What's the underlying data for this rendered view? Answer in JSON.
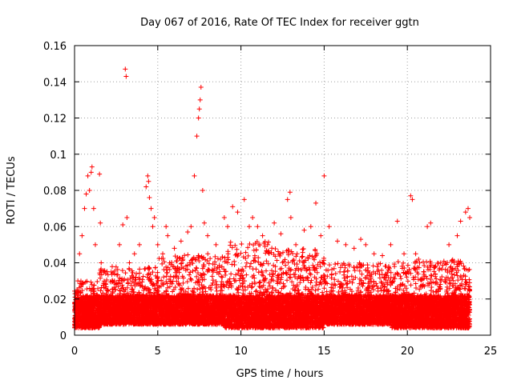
{
  "chart_data": {
    "type": "scatter",
    "title": "Day 067 of 2016, Rate Of TEC Index for receiver ggtn",
    "xlabel": "GPS time / hours",
    "ylabel": "ROTI / TECUs",
    "xlim": [
      0,
      25
    ],
    "ylim": [
      0,
      0.16
    ],
    "xticks": [
      0,
      5,
      10,
      15,
      20,
      25
    ],
    "yticks": [
      0,
      0.02,
      0.04,
      0.06,
      0.08,
      0.1,
      0.12,
      0.14,
      0.16
    ],
    "xtick_labels": [
      "0",
      "5",
      "10",
      "15",
      "20",
      "25"
    ],
    "ytick_labels": [
      "0",
      "0.02",
      "0.04",
      "0.06",
      "0.08",
      "0.1",
      "0.12",
      "0.14",
      "0.16"
    ],
    "grid": true,
    "marker": "+",
    "marker_color": "#ff0000",
    "series": [
      {
        "name": "ROTI",
        "x": [
          0.05,
          0.2,
          0.3,
          0.45,
          0.6,
          0.7,
          0.8,
          0.9,
          1.0,
          1.05,
          1.15,
          1.25,
          1.5,
          1.55,
          1.6,
          2.0,
          2.2,
          2.4,
          2.7,
          2.9,
          3.05,
          3.1,
          3.15,
          3.3,
          3.6,
          3.9,
          4.3,
          4.4,
          4.45,
          4.5,
          4.6,
          4.7,
          4.8,
          5.0,
          5.3,
          5.5,
          5.6,
          6.0,
          6.4,
          6.8,
          7.0,
          7.2,
          7.35,
          7.45,
          7.5,
          7.55,
          7.6,
          7.7,
          7.8,
          8.0,
          8.5,
          9.0,
          9.2,
          9.5,
          9.8,
          10.2,
          10.5,
          10.7,
          11.0,
          11.3,
          11.6,
          12.0,
          12.4,
          12.8,
          12.95,
          13.0,
          13.3,
          13.8,
          14.2,
          14.5,
          14.8,
          15.0,
          15.3,
          15.8,
          16.3,
          16.8,
          17.2,
          17.5,
          18.0,
          18.5,
          19.0,
          19.4,
          19.8,
          20.2,
          20.3,
          20.5,
          21.0,
          21.2,
          21.4,
          22.0,
          22.5,
          23.0,
          23.2,
          23.5,
          23.65,
          23.75
        ],
        "y": [
          0.015,
          0.03,
          0.045,
          0.055,
          0.07,
          0.078,
          0.088,
          0.08,
          0.09,
          0.093,
          0.07,
          0.05,
          0.089,
          0.062,
          0.04,
          0.025,
          0.035,
          0.03,
          0.05,
          0.061,
          0.147,
          0.143,
          0.065,
          0.04,
          0.045,
          0.05,
          0.082,
          0.088,
          0.085,
          0.076,
          0.07,
          0.06,
          0.065,
          0.05,
          0.045,
          0.06,
          0.055,
          0.048,
          0.052,
          0.057,
          0.06,
          0.088,
          0.11,
          0.12,
          0.125,
          0.13,
          0.137,
          0.08,
          0.062,
          0.055,
          0.05,
          0.065,
          0.06,
          0.071,
          0.068,
          0.075,
          0.06,
          0.065,
          0.06,
          0.055,
          0.05,
          0.062,
          0.056,
          0.075,
          0.079,
          0.065,
          0.05,
          0.058,
          0.06,
          0.073,
          0.055,
          0.088,
          0.06,
          0.052,
          0.05,
          0.048,
          0.053,
          0.05,
          0.045,
          0.044,
          0.05,
          0.063,
          0.045,
          0.077,
          0.075,
          0.045,
          0.035,
          0.06,
          0.062,
          0.04,
          0.05,
          0.055,
          0.063,
          0.068,
          0.07,
          0.065
        ]
      }
    ],
    "bulk_bands": [
      {
        "x0": 0.0,
        "x1": 1.5,
        "ymin": 0.004,
        "ymax": 0.03
      },
      {
        "x0": 1.5,
        "x1": 5.0,
        "ymin": 0.006,
        "ymax": 0.038
      },
      {
        "x0": 5.0,
        "x1": 9.0,
        "ymin": 0.006,
        "ymax": 0.045
      },
      {
        "x0": 9.0,
        "x1": 12.0,
        "ymin": 0.004,
        "ymax": 0.052
      },
      {
        "x0": 12.0,
        "x1": 15.0,
        "ymin": 0.004,
        "ymax": 0.048
      },
      {
        "x0": 15.0,
        "x1": 19.0,
        "ymin": 0.006,
        "ymax": 0.04
      },
      {
        "x0": 19.0,
        "x1": 23.75,
        "ymin": 0.004,
        "ymax": 0.042
      }
    ]
  }
}
